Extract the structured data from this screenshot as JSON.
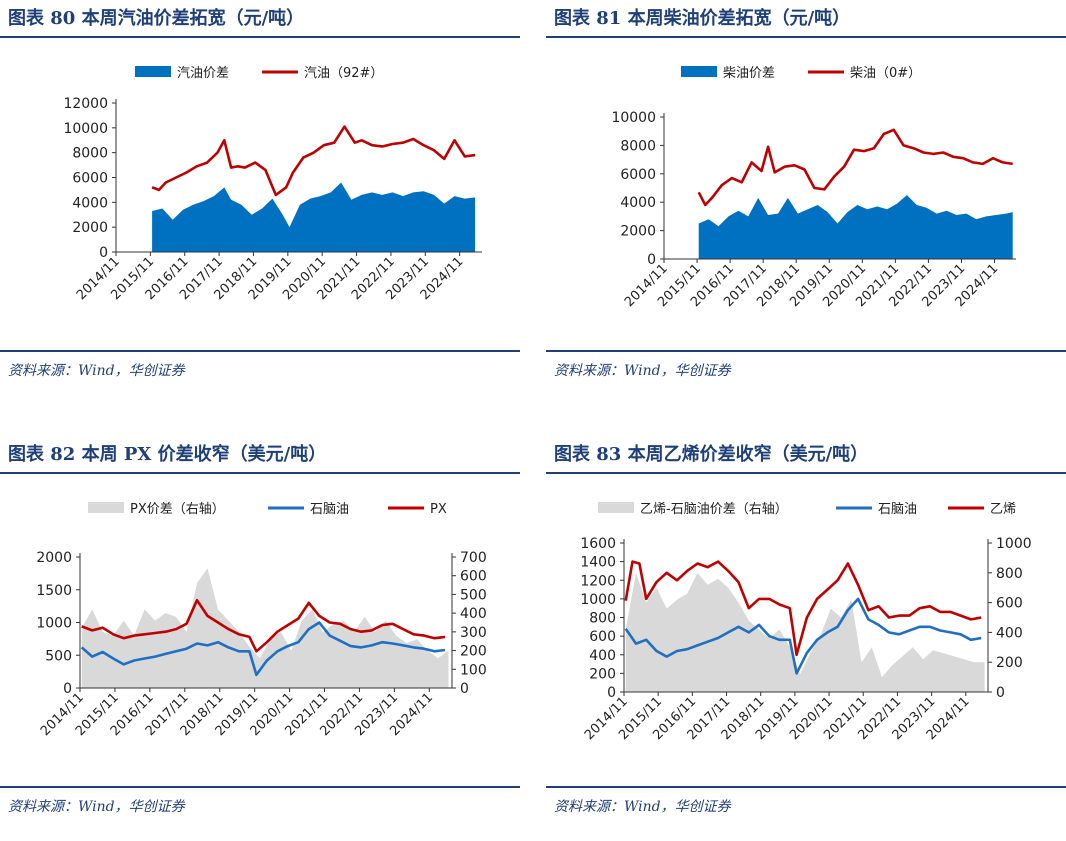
{
  "panels": [
    {
      "title": "图表 80   本周汽油价差拓宽（元/吨）",
      "source": "资料来源：Wind，华创证券"
    },
    {
      "title": "图表 81   本周柴油价差拓宽（元/吨）",
      "source": "资料来源：Wind，华创证券"
    },
    {
      "title": "图表 82   本周 PX 价差收窄（美元/吨）",
      "source": "资料来源：Wind，华创证券"
    },
    {
      "title": "图表 83   本周乙烯价差收窄（美元/吨）",
      "source": "资料来源：Wind，华创证券"
    }
  ],
  "colors": {
    "accent": "#1f3f7a",
    "blue": "#0070c0",
    "red": "#c00000",
    "gray": "#d9d9d9",
    "blue_line": "#1f6fc2"
  },
  "chart_data": [
    {
      "type": "area",
      "title": "本周汽油价差拓宽（元/吨）",
      "categories": [
        "2014/11",
        "2015/11",
        "2016/11",
        "2017/11",
        "2018/11",
        "2019/11",
        "2020/11",
        "2021/11",
        "2022/11",
        "2023/11",
        "2024/11"
      ],
      "ylim": [
        0,
        12000
      ],
      "yticks": [
        "0",
        "2000",
        "4000",
        "6000",
        "8000",
        "10000",
        "12000"
      ],
      "series": [
        {
          "name": "汽油价差",
          "kind": "area",
          "x": [
            2015.9,
            2016.2,
            2016.5,
            2016.8,
            2017.1,
            2017.4,
            2017.7,
            2018.0,
            2018.2,
            2018.5,
            2018.8,
            2019.1,
            2019.4,
            2019.7,
            2019.9,
            2020.2,
            2020.5,
            2020.8,
            2021.1,
            2021.4,
            2021.7,
            2022.0,
            2022.3,
            2022.6,
            2022.9,
            2023.2,
            2023.5,
            2023.8,
            2024.1,
            2024.4,
            2024.7,
            2025.0,
            2025.3
          ],
          "values": [
            3300,
            3500,
            2600,
            3400,
            3800,
            4100,
            4500,
            5200,
            4200,
            3800,
            3000,
            3500,
            4300,
            3000,
            2000,
            3800,
            4300,
            4500,
            4800,
            5600,
            4200,
            4600,
            4800,
            4600,
            4800,
            4500,
            4800,
            4900,
            4600,
            3900,
            4500,
            4300,
            4400
          ]
        },
        {
          "name": "汽油（92#）",
          "kind": "line",
          "x": [
            2015.9,
            2016.1,
            2016.3,
            2016.6,
            2016.9,
            2017.2,
            2017.5,
            2017.8,
            2018.0,
            2018.2,
            2018.4,
            2018.6,
            2018.9,
            2019.2,
            2019.5,
            2019.8,
            2020.0,
            2020.3,
            2020.6,
            2020.9,
            2021.2,
            2021.5,
            2021.8,
            2022.0,
            2022.3,
            2022.6,
            2022.9,
            2023.2,
            2023.5,
            2023.8,
            2024.1,
            2024.4,
            2024.7,
            2025.0,
            2025.3
          ],
          "values": [
            5200,
            5000,
            5600,
            6000,
            6400,
            6900,
            7200,
            8000,
            9000,
            6800,
            6900,
            6800,
            7200,
            6600,
            4600,
            5200,
            6400,
            7600,
            8000,
            8600,
            8800,
            10100,
            8800,
            9000,
            8600,
            8500,
            8700,
            8800,
            9100,
            8600,
            8200,
            7500,
            9000,
            7700,
            7800
          ]
        }
      ]
    },
    {
      "type": "area",
      "title": "本周柴油价差拓宽（元/吨）",
      "categories": [
        "2014/11",
        "2015/11",
        "2016/11",
        "2017/11",
        "2018/11",
        "2019/11",
        "2020/11",
        "2021/11",
        "2022/11",
        "2023/11",
        "2024/11"
      ],
      "ylim": [
        0,
        10000
      ],
      "yticks": [
        "0",
        "2000",
        "4000",
        "6000",
        "8000",
        "10000"
      ],
      "series": [
        {
          "name": "柴油价差",
          "kind": "area",
          "x": [
            2015.9,
            2016.2,
            2016.5,
            2016.8,
            2017.1,
            2017.4,
            2017.7,
            2018.0,
            2018.3,
            2018.6,
            2018.9,
            2019.2,
            2019.5,
            2019.8,
            2020.1,
            2020.4,
            2020.7,
            2021.0,
            2021.3,
            2021.6,
            2021.9,
            2022.2,
            2022.5,
            2022.8,
            2023.1,
            2023.4,
            2023.7,
            2024.0,
            2024.3,
            2024.6,
            2024.9,
            2025.2,
            2025.4
          ],
          "values": [
            2500,
            2800,
            2300,
            3000,
            3400,
            3000,
            4300,
            3100,
            3200,
            4300,
            3200,
            3500,
            3800,
            3300,
            2500,
            3300,
            3800,
            3500,
            3700,
            3500,
            3900,
            4500,
            3800,
            3600,
            3200,
            3400,
            3100,
            3200,
            2800,
            3000,
            3100,
            3200,
            3300
          ]
        },
        {
          "name": "柴油（0#）",
          "kind": "line",
          "x": [
            2015.9,
            2016.1,
            2016.3,
            2016.6,
            2016.9,
            2017.2,
            2017.5,
            2017.8,
            2018.0,
            2018.2,
            2018.5,
            2018.8,
            2019.1,
            2019.4,
            2019.7,
            2020.0,
            2020.3,
            2020.6,
            2020.9,
            2021.2,
            2021.5,
            2021.8,
            2022.1,
            2022.4,
            2022.7,
            2023.0,
            2023.3,
            2023.6,
            2023.9,
            2024.2,
            2024.5,
            2024.8,
            2025.1,
            2025.4
          ],
          "values": [
            4700,
            3800,
            4300,
            5200,
            5700,
            5400,
            6800,
            6200,
            7900,
            6100,
            6500,
            6600,
            6300,
            5000,
            4900,
            5800,
            6500,
            7700,
            7600,
            7800,
            8800,
            9100,
            8000,
            7800,
            7500,
            7400,
            7500,
            7200,
            7100,
            6800,
            6700,
            7100,
            6800,
            6700
          ]
        }
      ]
    },
    {
      "type": "line",
      "title": "本周 PX 价差收窄（美元/吨）",
      "categories": [
        "2014/11",
        "2015/11",
        "2016/11",
        "2017/11",
        "2018/11",
        "2019/11",
        "2020/11",
        "2021/11",
        "2022/11",
        "2023/11",
        "2024/11"
      ],
      "ylim": [
        0,
        2000
      ],
      "yticks": [
        "0",
        "500",
        "1000",
        "1500",
        "2000"
      ],
      "y2lim": [
        0,
        700
      ],
      "y2ticks": [
        "0",
        "100",
        "200",
        "300",
        "400",
        "500",
        "600",
        "700"
      ],
      "series": [
        {
          "name": "PX价差（右轴）",
          "kind": "area",
          "axis": "right",
          "x": [
            2014.9,
            2015.2,
            2015.5,
            2015.8,
            2016.1,
            2016.4,
            2016.7,
            2017.0,
            2017.3,
            2017.6,
            2017.9,
            2018.2,
            2018.5,
            2018.8,
            2019.1,
            2019.4,
            2019.7,
            2020.0,
            2020.3,
            2020.6,
            2020.9,
            2021.2,
            2021.5,
            2021.8,
            2022.1,
            2022.4,
            2022.7,
            2023.0,
            2023.3,
            2023.6,
            2023.9,
            2024.2,
            2024.5,
            2024.8,
            2025.1,
            2025.4
          ],
          "values": [
            320,
            420,
            300,
            280,
            360,
            280,
            420,
            360,
            400,
            380,
            300,
            560,
            640,
            420,
            360,
            300,
            220,
            160,
            260,
            300,
            200,
            360,
            420,
            300,
            340,
            360,
            300,
            380,
            300,
            360,
            280,
            240,
            260,
            200,
            160,
            200
          ]
        },
        {
          "name": "石脑油",
          "kind": "line",
          "axis": "left",
          "x": [
            2014.9,
            2015.2,
            2015.5,
            2015.8,
            2016.1,
            2016.4,
            2016.7,
            2017.0,
            2017.3,
            2017.6,
            2017.9,
            2018.2,
            2018.5,
            2018.8,
            2019.1,
            2019.4,
            2019.7,
            2019.9,
            2020.2,
            2020.5,
            2020.8,
            2021.1,
            2021.4,
            2021.7,
            2022.0,
            2022.3,
            2022.6,
            2022.9,
            2023.2,
            2023.5,
            2023.8,
            2024.1,
            2024.4,
            2024.7,
            2025.0,
            2025.3
          ],
          "values": [
            620,
            480,
            550,
            450,
            360,
            420,
            450,
            480,
            520,
            560,
            600,
            680,
            650,
            700,
            620,
            560,
            560,
            200,
            420,
            560,
            640,
            700,
            900,
            1000,
            800,
            720,
            640,
            620,
            650,
            700,
            680,
            650,
            620,
            600,
            560,
            580
          ]
        },
        {
          "name": "PX",
          "kind": "line",
          "axis": "left",
          "x": [
            2014.9,
            2015.2,
            2015.5,
            2015.8,
            2016.1,
            2016.4,
            2016.7,
            2017.0,
            2017.3,
            2017.6,
            2017.9,
            2018.2,
            2018.5,
            2018.8,
            2019.1,
            2019.4,
            2019.7,
            2019.9,
            2020.2,
            2020.5,
            2020.8,
            2021.1,
            2021.4,
            2021.7,
            2022.0,
            2022.3,
            2022.6,
            2022.9,
            2023.2,
            2023.5,
            2023.8,
            2024.1,
            2024.4,
            2024.7,
            2025.0,
            2025.3
          ],
          "values": [
            940,
            880,
            920,
            820,
            760,
            800,
            820,
            840,
            860,
            900,
            980,
            1340,
            1100,
            1000,
            900,
            820,
            780,
            560,
            700,
            860,
            960,
            1060,
            1300,
            1100,
            1000,
            980,
            900,
            860,
            880,
            960,
            980,
            900,
            820,
            800,
            760,
            780
          ]
        }
      ]
    },
    {
      "type": "line",
      "title": "本周乙烯价差收窄（美元/吨）",
      "categories": [
        "2014/11",
        "2015/11",
        "2016/11",
        "2017/11",
        "2018/11",
        "2019/11",
        "2020/11",
        "2021/11",
        "2022/11",
        "2023/11",
        "2024/11"
      ],
      "ylim": [
        0,
        1600
      ],
      "yticks": [
        "0",
        "200",
        "400",
        "600",
        "800",
        "1000",
        "1200",
        "1400",
        "1600"
      ],
      "y2lim": [
        0,
        1000
      ],
      "y2ticks": [
        "0",
        "200",
        "400",
        "600",
        "800",
        "1000"
      ],
      "series": [
        {
          "name": "乙烯-石脑油价差（右轴）",
          "kind": "area",
          "axis": "right",
          "x": [
            2014.9,
            2015.2,
            2015.5,
            2015.8,
            2016.1,
            2016.4,
            2016.7,
            2017.0,
            2017.3,
            2017.6,
            2017.9,
            2018.2,
            2018.5,
            2018.8,
            2019.1,
            2019.4,
            2019.7,
            2020.0,
            2020.3,
            2020.6,
            2020.9,
            2021.2,
            2021.5,
            2021.8,
            2022.1,
            2022.4,
            2022.7,
            2023.0,
            2023.3,
            2023.6,
            2023.9,
            2024.2,
            2024.5,
            2024.8,
            2025.1,
            2025.4
          ],
          "values": [
            420,
            800,
            600,
            700,
            560,
            620,
            660,
            800,
            720,
            760,
            700,
            600,
            480,
            420,
            360,
            420,
            300,
            120,
            260,
            380,
            560,
            500,
            620,
            200,
            300,
            100,
            180,
            240,
            300,
            220,
            280,
            260,
            240,
            220,
            200,
            200
          ]
        },
        {
          "name": "石脑油",
          "kind": "line",
          "axis": "left",
          "x": [
            2014.9,
            2015.2,
            2015.5,
            2015.8,
            2016.1,
            2016.4,
            2016.7,
            2017.0,
            2017.3,
            2017.6,
            2017.9,
            2018.2,
            2018.5,
            2018.8,
            2019.1,
            2019.4,
            2019.7,
            2019.9,
            2020.2,
            2020.5,
            2020.8,
            2021.1,
            2021.4,
            2021.7,
            2022.0,
            2022.3,
            2022.6,
            2022.9,
            2023.2,
            2023.5,
            2023.8,
            2024.1,
            2024.4,
            2024.7,
            2025.0,
            2025.3
          ],
          "values": [
            680,
            520,
            560,
            440,
            380,
            440,
            460,
            500,
            540,
            580,
            640,
            700,
            640,
            720,
            600,
            560,
            560,
            200,
            420,
            560,
            640,
            700,
            880,
            1000,
            780,
            720,
            640,
            620,
            660,
            700,
            700,
            660,
            640,
            620,
            560,
            580
          ]
        },
        {
          "name": "乙烯",
          "kind": "line",
          "axis": "left",
          "x": [
            2014.9,
            2015.1,
            2015.3,
            2015.5,
            2015.8,
            2016.1,
            2016.4,
            2016.7,
            2017.0,
            2017.3,
            2017.6,
            2017.9,
            2018.2,
            2018.5,
            2018.8,
            2019.1,
            2019.4,
            2019.7,
            2019.9,
            2020.2,
            2020.5,
            2020.8,
            2021.1,
            2021.4,
            2021.7,
            2022.0,
            2022.3,
            2022.6,
            2022.9,
            2023.2,
            2023.5,
            2023.8,
            2024.1,
            2024.4,
            2024.7,
            2025.0,
            2025.3
          ],
          "values": [
            980,
            1400,
            1380,
            1000,
            1180,
            1280,
            1200,
            1300,
            1380,
            1340,
            1400,
            1300,
            1180,
            900,
            1000,
            1000,
            940,
            900,
            400,
            800,
            1000,
            1100,
            1200,
            1380,
            1150,
            880,
            920,
            800,
            820,
            820,
            900,
            920,
            860,
            860,
            820,
            780,
            800
          ]
        }
      ]
    }
  ]
}
